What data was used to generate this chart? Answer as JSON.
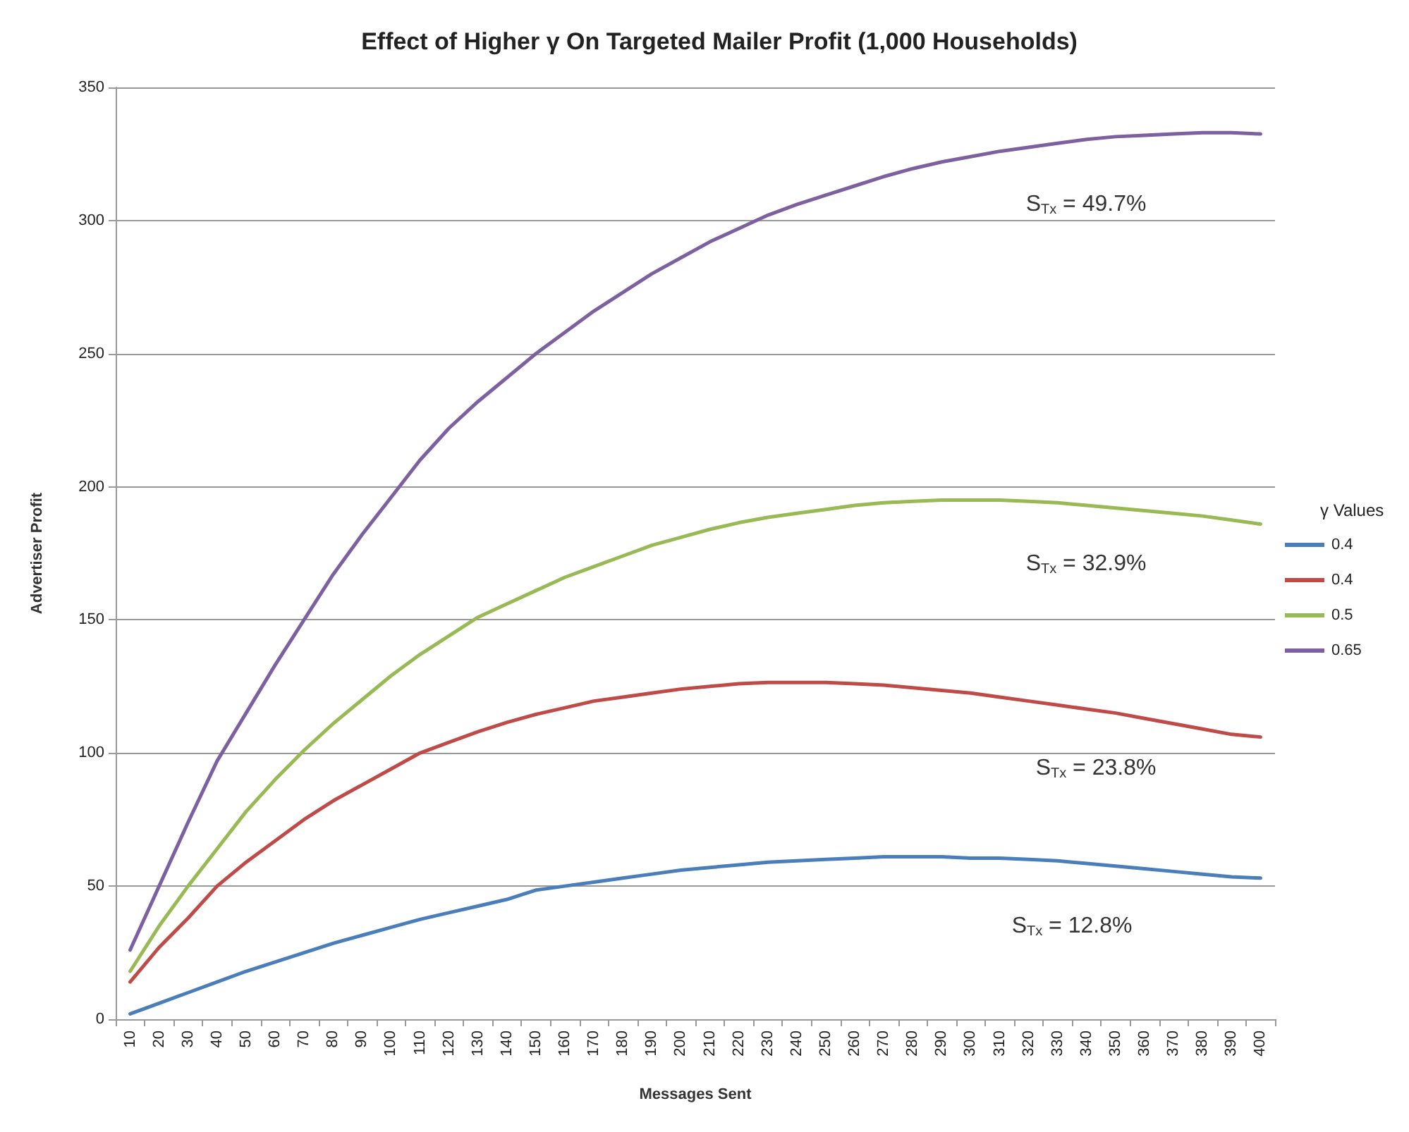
{
  "chart_data": {
    "type": "line",
    "title": "Effect of Higher γ On Targeted Mailer Profit (1,000 Households)",
    "xlabel": "Messages Sent",
    "ylabel": "Advertiser Profit",
    "legend_title": "γ Values",
    "legend": "right",
    "grid": "y",
    "marker": "none",
    "line_style": "solid",
    "categories": [
      "10",
      "20",
      "30",
      "40",
      "50",
      "60",
      "70",
      "80",
      "90",
      "100",
      "110",
      "120",
      "130",
      "140",
      "150",
      "160",
      "170",
      "180",
      "190",
      "200",
      "210",
      "220",
      "230",
      "240",
      "250",
      "260",
      "270",
      "280",
      "290",
      "300",
      "310",
      "320",
      "330",
      "340",
      "350",
      "360",
      "370",
      "380",
      "390",
      "400"
    ],
    "ylim": [
      0,
      350
    ],
    "yticks": [
      0,
      50,
      100,
      150,
      200,
      250,
      300,
      350
    ],
    "series": [
      {
        "name": "0.4",
        "color": "#4a7ebb",
        "values": [
          2,
          6,
          10,
          14,
          18,
          21.5,
          25,
          28.5,
          31.5,
          34.5,
          37.5,
          40,
          42.5,
          45,
          48.5,
          50,
          51.5,
          53,
          54.5,
          56,
          57,
          58,
          59,
          59.5,
          60,
          60.5,
          61,
          61,
          61,
          60.5,
          60.5,
          60,
          59.5,
          58.5,
          57.5,
          56.5,
          55.5,
          54.5,
          53.5,
          53
        ]
      },
      {
        "name": "0.4",
        "color": "#be4b48",
        "values": [
          14,
          27,
          38,
          50,
          59,
          67,
          75,
          82,
          88,
          94,
          100,
          104,
          108,
          111.5,
          114.5,
          117,
          119.5,
          121,
          122.5,
          124,
          125,
          126,
          126.5,
          126.5,
          126.5,
          126,
          125.5,
          124.5,
          123.5,
          122.5,
          121,
          119.5,
          118,
          116.5,
          115,
          113,
          111,
          109,
          107,
          106
        ]
      },
      {
        "name": "0.5",
        "color": "#98b954",
        "values": [
          18,
          35,
          50,
          64,
          78,
          90,
          101,
          111,
          120,
          129,
          137,
          144,
          151,
          156,
          161,
          166,
          170,
          174,
          178,
          181,
          184,
          186.5,
          188.5,
          190,
          191.5,
          193,
          194,
          194.5,
          195,
          195,
          195,
          194.5,
          194,
          193,
          192,
          191,
          190,
          189,
          187.5,
          186
        ]
      },
      {
        "name": "0.65",
        "color": "#7d60a0",
        "values": [
          26,
          50,
          74,
          97,
          115,
          133,
          150,
          167,
          182,
          196,
          210,
          222,
          232,
          241,
          250,
          258,
          266,
          273,
          280,
          286,
          292,
          297,
          302,
          306,
          309.5,
          313,
          316.5,
          319.5,
          322,
          324,
          326,
          327.5,
          329,
          330.5,
          331.5,
          332,
          332.5,
          333,
          333,
          332.5
        ]
      }
    ],
    "annotations": [
      "S$_{Tx}$ = 49.7%",
      "S$_{Tx}$ = 32.9%",
      "S$_{Tx}$ = 23.8%",
      "S$_{Tx}$ = 12.8%"
    ]
  }
}
